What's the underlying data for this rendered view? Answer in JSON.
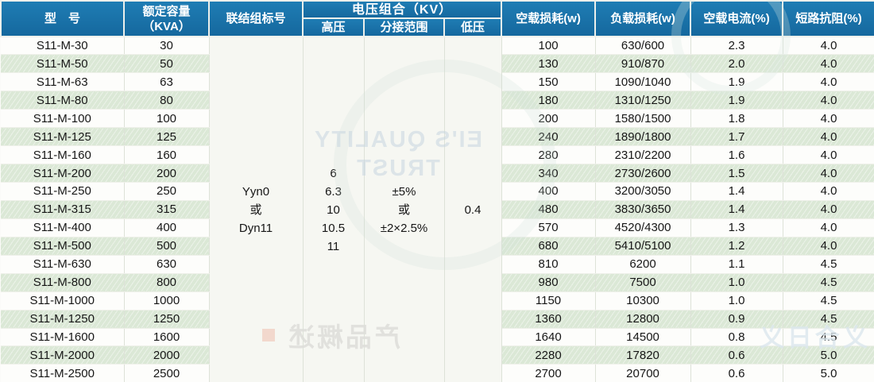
{
  "colors": {
    "header_blue": "#1a74ac",
    "stripe_green": "#dbe8d6"
  },
  "table": {
    "headers": {
      "model": "型　号",
      "capacity": "额定容量\n（KVA）",
      "connection": "联结组标号",
      "voltage_group": "电压组合（KV）",
      "hv": "高压",
      "tap_range": "分接范围",
      "lv": "低压",
      "no_load_loss": "空载损耗(w)",
      "load_loss": "负载损耗(w)",
      "no_load_current": "空载电流(%)",
      "impedance": "短路抗阻(%)"
    },
    "merged": {
      "connection": "Yyn0\n或\nDyn11",
      "hv": "6\n6.3\n10\n10.5\n11",
      "tap": "±5%\n或\n±2×2.5%",
      "lv": "0.4"
    },
    "rows": [
      {
        "model": "S11-M-30",
        "capacity": "30",
        "no_load_loss": "100",
        "load_loss": "630/600",
        "no_load_current": "2.3",
        "impedance": "4.0"
      },
      {
        "model": "S11-M-50",
        "capacity": "50",
        "no_load_loss": "130",
        "load_loss": "910/870",
        "no_load_current": "2.0",
        "impedance": "4.0"
      },
      {
        "model": "S11-M-63",
        "capacity": "63",
        "no_load_loss": "150",
        "load_loss": "1090/1040",
        "no_load_current": "1.9",
        "impedance": "4.0"
      },
      {
        "model": "S11-M-80",
        "capacity": "80",
        "no_load_loss": "180",
        "load_loss": "1310/1250",
        "no_load_current": "1.9",
        "impedance": "4.0"
      },
      {
        "model": "S11-M-100",
        "capacity": "100",
        "no_load_loss": "200",
        "load_loss": "1580/1500",
        "no_load_current": "1.8",
        "impedance": "4.0"
      },
      {
        "model": "S11-M-125",
        "capacity": "125",
        "no_load_loss": "240",
        "load_loss": "1890/1800",
        "no_load_current": "1.7",
        "impedance": "4.0"
      },
      {
        "model": "S11-M-160",
        "capacity": "160",
        "no_load_loss": "280",
        "load_loss": "2310/2200",
        "no_load_current": "1.6",
        "impedance": "4.0"
      },
      {
        "model": "S11-M-200",
        "capacity": "200",
        "no_load_loss": "340",
        "load_loss": "2730/2600",
        "no_load_current": "1.5",
        "impedance": "4.0"
      },
      {
        "model": "S11-M-250",
        "capacity": "250",
        "no_load_loss": "400",
        "load_loss": "3200/3050",
        "no_load_current": "1.4",
        "impedance": "4.0"
      },
      {
        "model": "S11-M-315",
        "capacity": "315",
        "no_load_loss": "480",
        "load_loss": "3830/3650",
        "no_load_current": "1.4",
        "impedance": "4.0"
      },
      {
        "model": "S11-M-400",
        "capacity": "400",
        "no_load_loss": "570",
        "load_loss": "4520/4300",
        "no_load_current": "1.3",
        "impedance": "4.0"
      },
      {
        "model": "S11-M-500",
        "capacity": "500",
        "no_load_loss": "680",
        "load_loss": "5410/5100",
        "no_load_current": "1.2",
        "impedance": "4.0"
      },
      {
        "model": "S11-M-630",
        "capacity": "630",
        "no_load_loss": "810",
        "load_loss": "6200",
        "no_load_current": "1.1",
        "impedance": "4.5"
      },
      {
        "model": "S11-M-800",
        "capacity": "800",
        "no_load_loss": "980",
        "load_loss": "7500",
        "no_load_current": "1.0",
        "impedance": "4.5"
      },
      {
        "model": "S11-M-1000",
        "capacity": "1000",
        "no_load_loss": "1150",
        "load_loss": "10300",
        "no_load_current": "1.0",
        "impedance": "4.5"
      },
      {
        "model": "S11-M-1250",
        "capacity": "1250",
        "no_load_loss": "1360",
        "load_loss": "12800",
        "no_load_current": "0.9",
        "impedance": "4.5"
      },
      {
        "model": "S11-M-1600",
        "capacity": "1600",
        "no_load_loss": "1640",
        "load_loss": "14500",
        "no_load_current": "0.8",
        "impedance": "4.5"
      },
      {
        "model": "S11-M-2000",
        "capacity": "2000",
        "no_load_loss": "2280",
        "load_loss": "17820",
        "no_load_current": "0.6",
        "impedance": "5.0"
      },
      {
        "model": "S11-M-2500",
        "capacity": "2500",
        "no_load_loss": "2700",
        "load_loss": "20700",
        "no_load_current": "0.6",
        "impedance": "5.0"
      }
    ]
  },
  "watermarks": {
    "mirrored_line1": "EI'S QUALITY",
    "mirrored_line2": "TRUST",
    "bottom_text": "产品概述",
    "bottom_right_text": "义合日义"
  }
}
